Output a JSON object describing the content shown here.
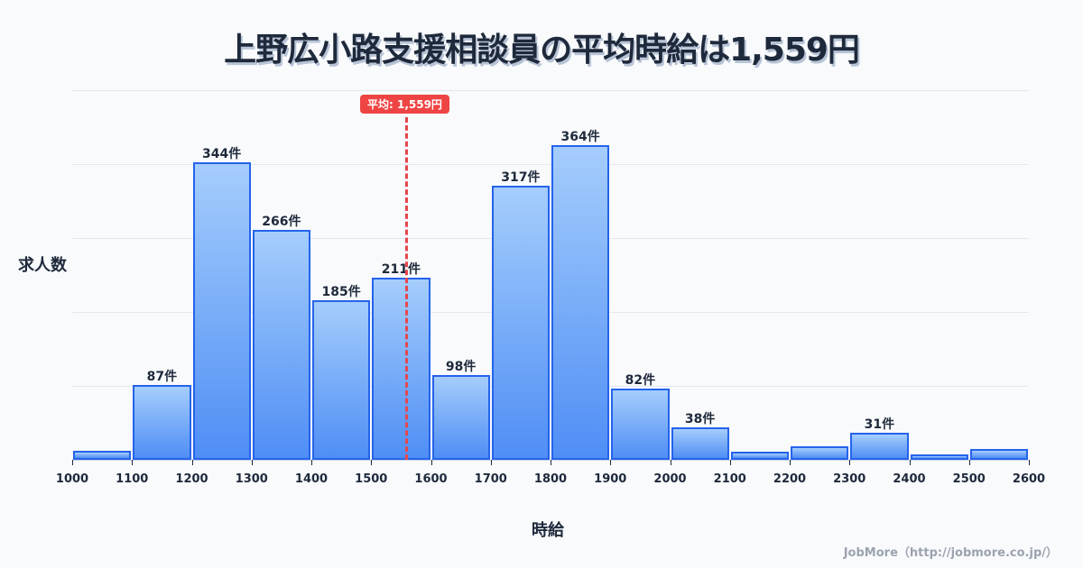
{
  "title": "上野広小路支援相談員の平均時給は1,559円",
  "y_axis_label": "求人数",
  "x_axis_label": "時給",
  "credit": "JobMore（http://jobmore.co.jp/）",
  "mean_badge": "平均: 1,559円",
  "colors": {
    "bar_fill_top": "#a5cdfc",
    "bar_fill_bottom": "#4f8ef5",
    "bar_border": "#2563eb",
    "mean_line": "#ef4444",
    "text": "#1e293b"
  },
  "chart_data": {
    "type": "bar",
    "title": "上野広小路支援相談員の平均時給は1,559円",
    "xlabel": "時給",
    "ylabel": "求人数",
    "bins": [
      1000,
      1100,
      1200,
      1300,
      1400,
      1500,
      1600,
      1700,
      1800,
      1900,
      2000,
      2100,
      2200,
      2300,
      2400,
      2500,
      2600
    ],
    "categories": [
      "1000-1100",
      "1100-1200",
      "1200-1300",
      "1300-1400",
      "1400-1500",
      "1500-1600",
      "1600-1700",
      "1700-1800",
      "1800-1900",
      "1900-2000",
      "2000-2100",
      "2100-2200",
      "2200-2300",
      "2300-2400",
      "2400-2500",
      "2500-2600"
    ],
    "values": [
      10,
      87,
      344,
      266,
      185,
      211,
      98,
      317,
      364,
      82,
      38,
      9,
      16,
      31,
      5,
      13
    ],
    "labels": [
      "",
      "87件",
      "344件",
      "266件",
      "185件",
      "211件",
      "98件",
      "317件",
      "364件",
      "82件",
      "38件",
      "",
      "",
      "31件",
      "",
      ""
    ],
    "mean": 1559,
    "mean_label": "平均: 1,559円",
    "xlim": [
      1000,
      2600
    ],
    "ylim": [
      0,
      427
    ],
    "grid": true,
    "x_tick_labels": [
      "1000",
      "1100",
      "1200",
      "1300",
      "1400",
      "1500",
      "1600",
      "1700",
      "1800",
      "1900",
      "2000",
      "2100",
      "2200",
      "2300",
      "2400",
      "2500",
      "2600"
    ]
  }
}
